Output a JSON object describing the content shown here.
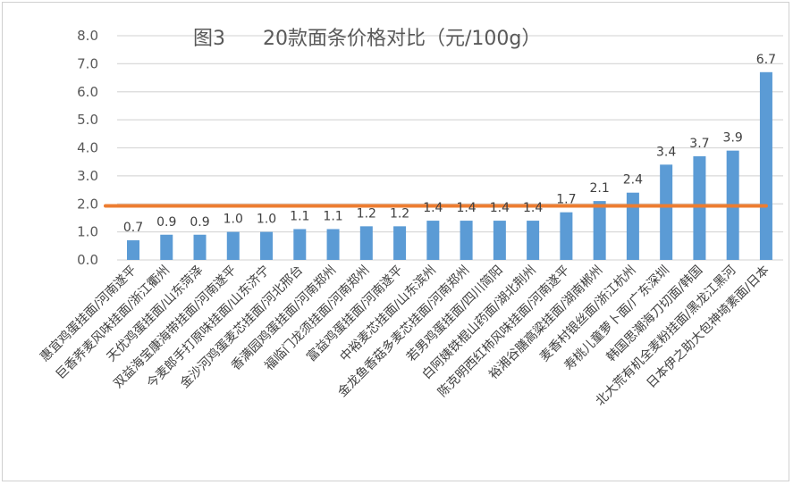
{
  "chart_data": {
    "type": "bar",
    "title": "图3      20款面条价格对比（元/100g）",
    "xlabel": "",
    "ylabel": "",
    "ylim": [
      0,
      8
    ],
    "yticks": [
      "0.0",
      "1.0",
      "2.0",
      "3.0",
      "4.0",
      "5.0",
      "6.0",
      "7.0",
      "8.0"
    ],
    "grid": true,
    "categories": [
      "惠宜鸡蛋挂面/河南遂平",
      "巨香荞麦风味挂面/浙江衢州",
      "天优鸡蛋挂面/山东菏泽",
      "双益海宝康海带挂面/河南遂平",
      "今麦郎手打原味挂面/山东济宁",
      "金沙河鸡蛋麦芯挂面/河北邢台",
      "香满园鸡蛋挂面/河南郑州",
      "福临门龙须挂面/河南郑州",
      "富益鸡蛋挂面/河南遂平",
      "中裕麦芯挂面/山东滨州",
      "金龙鱼香菇多麦芯挂面/河南郑州",
      "若男鸡蛋挂面/四川简阳",
      "白阿姨铁棍山药面/湖北荆州",
      "陈克明西红柿风味挂面/河南遂平",
      "裕湘谷膳高粱挂面/湖南郴州",
      "麦香村银丝面/浙江杭州",
      "寿桃儿童萝卜面/广东深圳",
      "韩国思潮海刀切面/韩国",
      "北大荒有机全麦粉挂面/黑龙江黑河",
      "日本伊之助大包神埼素面/日本"
    ],
    "values": [
      0.7,
      0.9,
      0.9,
      1.0,
      1.0,
      1.1,
      1.1,
      1.2,
      1.2,
      1.4,
      1.4,
      1.4,
      1.4,
      1.7,
      2.1,
      2.4,
      3.4,
      3.7,
      3.9,
      6.7
    ],
    "data_labels": [
      "0.7",
      "0.9",
      "0.9",
      "1.0",
      "1.0",
      "1.1",
      "1.1",
      "1.2",
      "1.2",
      "1.4",
      "1.4",
      "1.4",
      "1.4",
      "1.7",
      "2.1",
      "2.4",
      "3.4",
      "3.7",
      "3.9",
      "6.7"
    ],
    "reference_line": {
      "value": 1.93,
      "color": "#ED7D31"
    },
    "bar_color": "#5B9BD5",
    "gridline_color": "#D9D9D9"
  }
}
